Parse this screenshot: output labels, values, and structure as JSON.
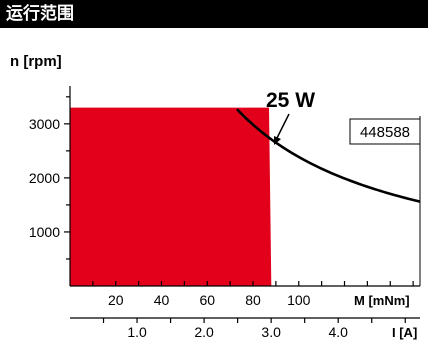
{
  "header": {
    "title": "运行范围"
  },
  "chart_data": {
    "type": "area",
    "title": "",
    "ylabel": "n [rpm]",
    "xlabel": "M [mNm]",
    "x2label": "I [A]",
    "ylim": [
      0,
      3700
    ],
    "xlim": [
      0,
      153
    ],
    "x2lim": [
      0,
      5.22
    ],
    "y_ticks": [
      1000,
      2000,
      3000
    ],
    "x_ticks": [
      20,
      40,
      60,
      80,
      100
    ],
    "x2_ticks": [
      1.0,
      2.0,
      3.0,
      4.0
    ],
    "x2_tick_labels": [
      "1.0",
      "2.0",
      "3.0",
      "4.0"
    ],
    "grid": false,
    "operating_region": {
      "color": "#e3001b",
      "max_speed_rpm": 3300,
      "max_torque_top_mNm": 87,
      "max_torque_bottom_mNm": 88
    },
    "power_curve": {
      "label": "25 W",
      "power_W": 25,
      "torque_range_mNm": [
        73,
        153
      ]
    },
    "part_number": "448588"
  }
}
